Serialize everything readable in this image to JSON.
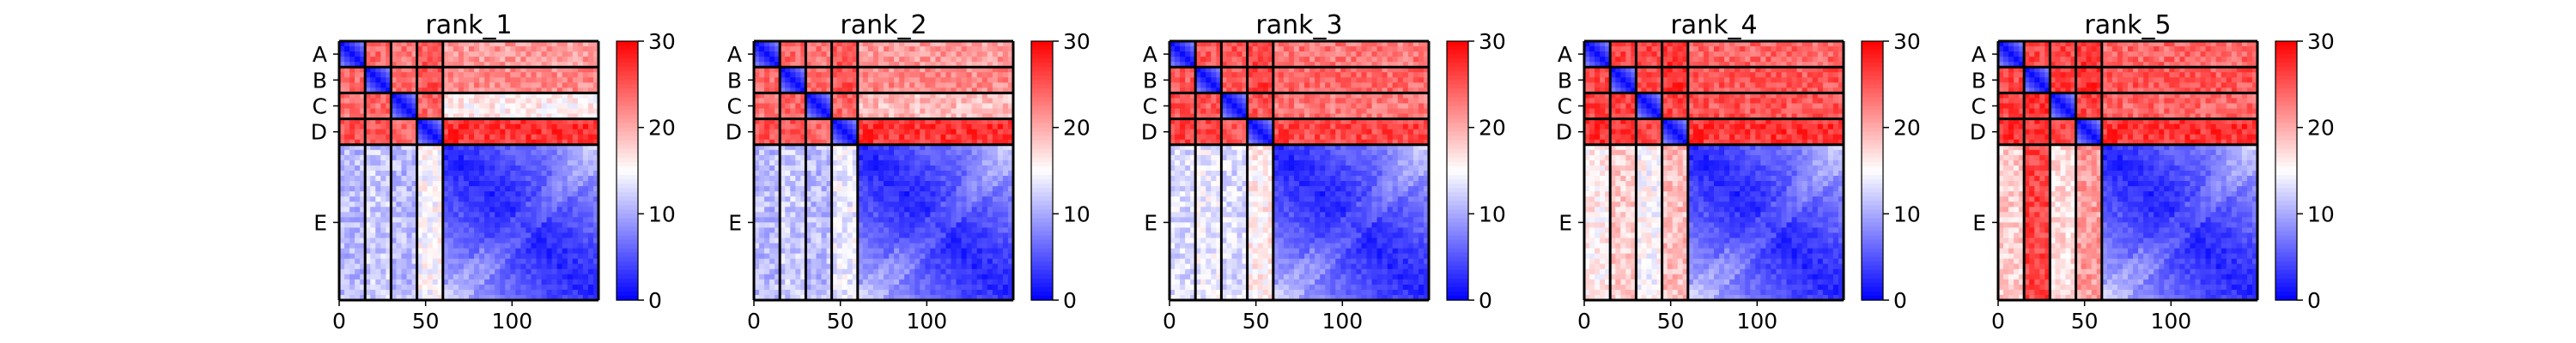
{
  "chart_data": [
    {
      "type": "heatmap",
      "title": "rank_1",
      "chain_labels": [
        "A",
        "B",
        "C",
        "D",
        "E"
      ],
      "chain_boundaries": [
        0,
        15,
        30,
        45,
        60,
        150
      ],
      "x_ticks": [
        0,
        50,
        100
      ],
      "x_range": [
        0,
        150
      ],
      "colorbar": {
        "min": 0,
        "max": 30,
        "ticks": [
          0,
          10,
          20,
          30
        ]
      },
      "colors": {
        "low": "#0000ff",
        "mid": "#ffffff",
        "high": "#ff0000"
      },
      "block_mean_pae": [
        [
          2,
          24,
          23,
          25,
          21
        ],
        [
          24,
          2,
          24,
          25,
          22
        ],
        [
          23,
          24,
          2,
          24,
          16
        ],
        [
          25,
          25,
          24,
          2,
          27
        ],
        [
          11,
          12,
          11,
          15,
          4
        ]
      ]
    },
    {
      "type": "heatmap",
      "title": "rank_2",
      "chain_labels": [
        "A",
        "B",
        "C",
        "D",
        "E"
      ],
      "chain_boundaries": [
        0,
        15,
        30,
        45,
        60,
        150
      ],
      "x_ticks": [
        0,
        50,
        100
      ],
      "x_range": [
        0,
        150
      ],
      "colorbar": {
        "min": 0,
        "max": 30,
        "ticks": [
          0,
          10,
          20,
          30
        ]
      },
      "colors": {
        "low": "#0000ff",
        "mid": "#ffffff",
        "high": "#ff0000"
      },
      "block_mean_pae": [
        [
          2,
          24,
          23,
          25,
          21
        ],
        [
          24,
          2,
          24,
          25,
          22
        ],
        [
          23,
          24,
          2,
          24,
          19
        ],
        [
          25,
          25,
          24,
          2,
          27
        ],
        [
          11,
          12,
          11,
          14,
          4
        ]
      ]
    },
    {
      "type": "heatmap",
      "title": "rank_3",
      "chain_labels": [
        "A",
        "B",
        "C",
        "D",
        "E"
      ],
      "chain_boundaries": [
        0,
        15,
        30,
        45,
        60,
        150
      ],
      "x_ticks": [
        0,
        50,
        100
      ],
      "x_range": [
        0,
        150
      ],
      "colorbar": {
        "min": 0,
        "max": 30,
        "ticks": [
          0,
          10,
          20,
          30
        ]
      },
      "colors": {
        "low": "#0000ff",
        "mid": "#ffffff",
        "high": "#ff0000"
      },
      "block_mean_pae": [
        [
          2,
          25,
          25,
          26,
          23
        ],
        [
          25,
          2,
          25,
          26,
          24
        ],
        [
          25,
          25,
          2,
          25,
          23
        ],
        [
          26,
          26,
          25,
          2,
          26
        ],
        [
          13,
          14,
          13,
          16,
          4
        ]
      ]
    },
    {
      "type": "heatmap",
      "title": "rank_4",
      "chain_labels": [
        "A",
        "B",
        "C",
        "D",
        "E"
      ],
      "chain_boundaries": [
        0,
        15,
        30,
        45,
        60,
        150
      ],
      "x_ticks": [
        0,
        50,
        100
      ],
      "x_range": [
        0,
        150
      ],
      "colorbar": {
        "min": 0,
        "max": 30,
        "ticks": [
          0,
          10,
          20,
          30
        ]
      },
      "colors": {
        "low": "#0000ff",
        "mid": "#ffffff",
        "high": "#ff0000"
      },
      "block_mean_pae": [
        [
          2,
          26,
          26,
          27,
          24
        ],
        [
          26,
          2,
          26,
          27,
          25
        ],
        [
          26,
          26,
          2,
          26,
          25
        ],
        [
          27,
          27,
          26,
          2,
          27
        ],
        [
          16,
          18,
          15,
          19,
          4
        ]
      ]
    },
    {
      "type": "heatmap",
      "title": "rank_5",
      "chain_labels": [
        "A",
        "B",
        "C",
        "D",
        "E"
      ],
      "chain_boundaries": [
        0,
        15,
        30,
        45,
        60,
        150
      ],
      "x_ticks": [
        0,
        50,
        100
      ],
      "x_range": [
        0,
        150
      ],
      "colorbar": {
        "min": 0,
        "max": 30,
        "ticks": [
          0,
          10,
          20,
          30
        ]
      },
      "colors": {
        "low": "#0000ff",
        "mid": "#ffffff",
        "high": "#ff0000"
      },
      "block_mean_pae": [
        [
          2,
          26,
          26,
          27,
          24
        ],
        [
          26,
          2,
          27,
          27,
          25
        ],
        [
          26,
          27,
          2,
          26,
          24
        ],
        [
          27,
          27,
          26,
          2,
          27
        ],
        [
          18,
          26,
          17,
          21,
          4
        ]
      ]
    }
  ]
}
